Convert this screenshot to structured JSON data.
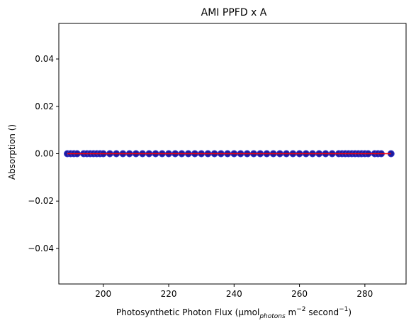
{
  "chart_data": {
    "type": "scatter",
    "title": "AMI PPFD x A",
    "xlabel": {
      "main": "Photosynthetic Photon Flux (μmol",
      "sub": "photons",
      "mid": " m",
      "sup1": "−2",
      "mid2": " second",
      "sup2": "−1",
      "end": ")"
    },
    "ylabel": "Absorption ()",
    "xlim": [
      186.4,
      292.6
    ],
    "ylim": [
      -0.055,
      0.055
    ],
    "x_ticks": [
      200,
      220,
      240,
      260,
      280
    ],
    "y_ticks": [
      -0.04,
      -0.02,
      0.0,
      0.02,
      0.04
    ],
    "y_tick_labels": [
      "−0.04",
      "−0.02",
      "0.00",
      "0.02",
      "0.04"
    ],
    "grid": false,
    "marker_color": "#1c1c9e",
    "marker_edge_color": "#3a3acf",
    "fit_line_color": "#ff0000",
    "series": [
      {
        "x": [
          189,
          190,
          191,
          192,
          194,
          195,
          196,
          197,
          198,
          199,
          200,
          202,
          204,
          206,
          208,
          210,
          212,
          214,
          216,
          218,
          220,
          222,
          224,
          226,
          228,
          230,
          232,
          234,
          236,
          238,
          240,
          242,
          244,
          246,
          248,
          250,
          252,
          254,
          256,
          258,
          260,
          262,
          264,
          266,
          268,
          270,
          272,
          273,
          274,
          275,
          276,
          277,
          278,
          279,
          280,
          281,
          283,
          284,
          285,
          288
        ],
        "y": [
          0,
          0,
          0,
          0,
          0,
          0,
          0,
          0,
          0,
          0,
          0,
          0,
          0,
          0,
          0,
          0,
          0,
          0,
          0,
          0,
          0,
          0,
          0,
          0,
          0,
          0,
          0,
          0,
          0,
          0,
          0,
          0,
          0,
          0,
          0,
          0,
          0,
          0,
          0,
          0,
          0,
          0,
          0,
          0,
          0,
          0,
          0,
          0,
          0,
          0,
          0,
          0,
          0,
          0,
          0,
          0,
          0,
          0,
          0,
          0
        ]
      }
    ],
    "fit_line": {
      "x": [
        189,
        288
      ],
      "y": [
        0,
        0
      ]
    }
  }
}
